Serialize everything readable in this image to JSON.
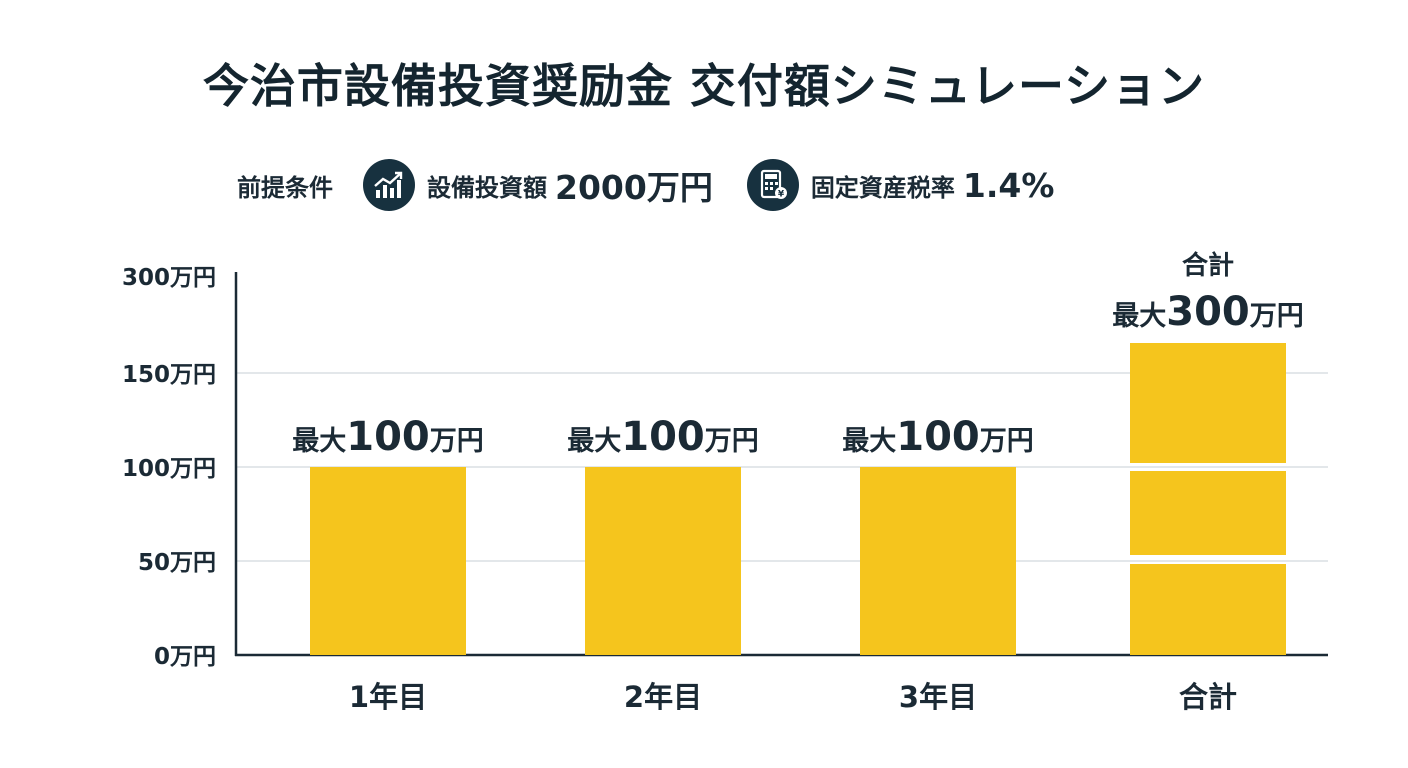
{
  "title": "今治市設備投資奨励金 交付額シミュレーション",
  "conditions": {
    "label": "前提条件",
    "items": [
      {
        "icon": "growth-chart-icon",
        "name": "設備投資額",
        "value": "2000万円"
      },
      {
        "icon": "calculator-icon",
        "name": "固定資産税率",
        "value": "1.4%"
      }
    ]
  },
  "colors": {
    "bar": "#f5c51d",
    "axis": "#1b2a35",
    "grid": "#e3e7ea",
    "icon_bg": "#17313f"
  },
  "chart_data": {
    "type": "bar",
    "categories": [
      "1年目",
      "2年目",
      "3年目",
      "合計"
    ],
    "values": [
      100,
      100,
      100,
      300
    ],
    "unit": "万円",
    "yticks": [
      "0万円",
      "50万円",
      "100万円",
      "150万円",
      "300万円"
    ],
    "y_tick_values": [
      0,
      50,
      100,
      150,
      300
    ],
    "y_axis_note": "軸は150万円から300万円の間で省略されている",
    "data_labels": [
      {
        "prefix": "最大",
        "number": "100",
        "unit": "万円"
      },
      {
        "prefix": "最大",
        "number": "100",
        "unit": "万円"
      },
      {
        "prefix": "最大",
        "number": "100",
        "unit": "万円"
      },
      {
        "prefix": "最大",
        "number": "300",
        "unit": "万円"
      }
    ],
    "total_caption": "合計",
    "total_segments": 3,
    "grid": true,
    "legend": "none"
  }
}
